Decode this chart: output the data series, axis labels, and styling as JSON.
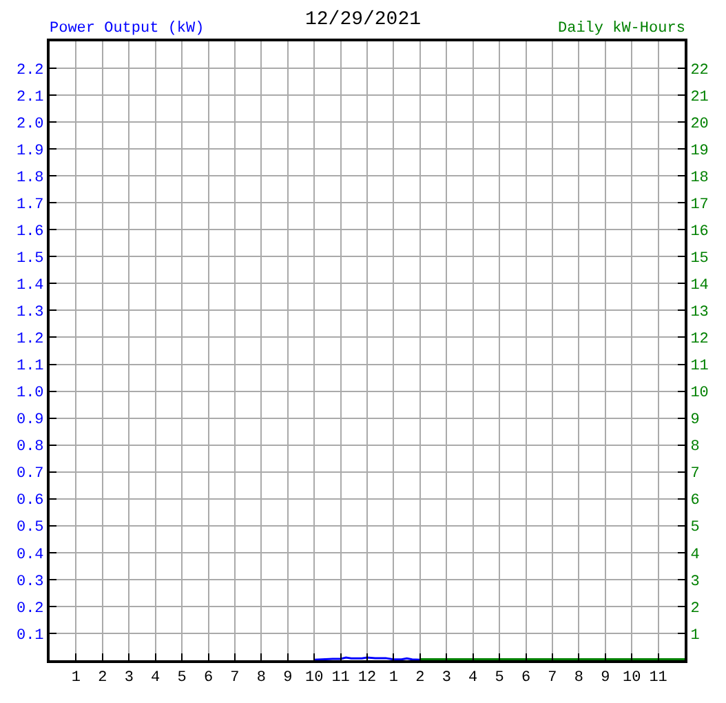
{
  "chart_data": {
    "type": "line",
    "title": "12/29/2021",
    "ylabel": "Power Output (kW)",
    "y2label": "Daily kW-Hours",
    "series": [
      {
        "color": "#0000ff",
        "x": [
          "2021-12-29T10:00",
          "2021-12-29T10:42",
          "2021-12-29T11:00",
          "2021-12-29T11:12",
          "2021-12-29T11:24",
          "2021-12-29T11:48",
          "2021-12-29T12:00",
          "2021-12-29T12:18",
          "2021-12-29T12:42",
          "2021-12-29T13:00",
          "2021-12-29T13:18",
          "2021-12-29T13:30",
          "2021-12-29T13:42",
          "2021-12-29T14:00"
        ],
        "values": [
          0.002,
          0.005,
          0.005,
          0.01,
          0.007,
          0.007,
          0.01,
          0.008,
          0.008,
          0.003,
          0.003,
          0.007,
          0.003,
          0.002
        ]
      },
      {
        "color": "#008000",
        "axis": "y2",
        "x": [
          "2021-12-29T14:00",
          "2021-12-30T00:00"
        ],
        "values": [
          0.04,
          0.04
        ]
      }
    ],
    "xlim": [
      "2021-12-29T00:00",
      "2021-12-30T00:00"
    ],
    "xticks": [
      {
        "value": "2021-12-29T01:00",
        "label": "1"
      },
      {
        "value": "2021-12-29T02:00",
        "label": "2"
      },
      {
        "value": "2021-12-29T03:00",
        "label": "3"
      },
      {
        "value": "2021-12-29T04:00",
        "label": "4"
      },
      {
        "value": "2021-12-29T05:00",
        "label": "5"
      },
      {
        "value": "2021-12-29T06:00",
        "label": "6"
      },
      {
        "value": "2021-12-29T07:00",
        "label": "7"
      },
      {
        "value": "2021-12-29T08:00",
        "label": "8"
      },
      {
        "value": "2021-12-29T09:00",
        "label": "9"
      },
      {
        "value": "2021-12-29T10:00",
        "label": "10"
      },
      {
        "value": "2021-12-29T11:00",
        "label": "11"
      },
      {
        "value": "2021-12-29T12:00",
        "label": "12"
      },
      {
        "value": "2021-12-29T13:00",
        "label": "1"
      },
      {
        "value": "2021-12-29T14:00",
        "label": "2"
      },
      {
        "value": "2021-12-29T15:00",
        "label": "3"
      },
      {
        "value": "2021-12-29T16:00",
        "label": "4"
      },
      {
        "value": "2021-12-29T17:00",
        "label": "5"
      },
      {
        "value": "2021-12-29T18:00",
        "label": "6"
      },
      {
        "value": "2021-12-29T19:00",
        "label": "7"
      },
      {
        "value": "2021-12-29T20:00",
        "label": "8"
      },
      {
        "value": "2021-12-29T21:00",
        "label": "9"
      },
      {
        "value": "2021-12-29T22:00",
        "label": "10"
      },
      {
        "value": "2021-12-29T23:00",
        "label": "11"
      }
    ],
    "ylim": [
      0,
      2.3
    ],
    "yticks": [
      0.1,
      0.2,
      0.3,
      0.4,
      0.5,
      0.6,
      0.7,
      0.8,
      0.9,
      {
        "value": 1.0,
        "label": "1.0"
      },
      1.1,
      1.2,
      1.3,
      1.4,
      1.5,
      1.6,
      1.7,
      1.8,
      1.9,
      {
        "value": 2.0,
        "label": "2.0"
      },
      2.1,
      2.2
    ],
    "y2lim": [
      0,
      23
    ],
    "y2ticks": [
      1,
      2,
      3,
      4,
      5,
      6,
      7,
      8,
      9,
      10,
      11,
      12,
      13,
      14,
      15,
      16,
      17,
      18,
      19,
      20,
      21,
      22
    ],
    "grid": true,
    "legend": false
  }
}
